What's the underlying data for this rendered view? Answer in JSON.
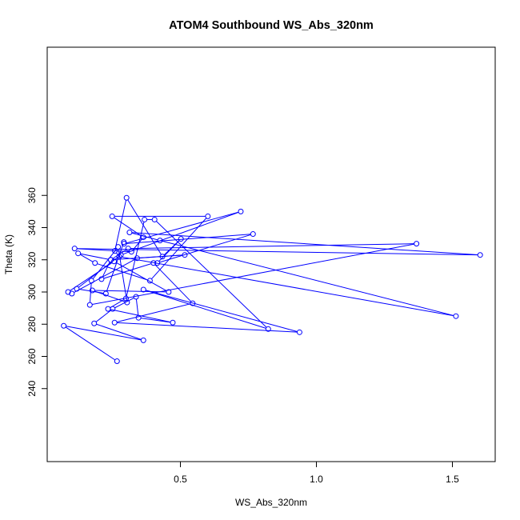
{
  "chart_data": {
    "type": "line",
    "title": "ATOM4 Southbound WS_Abs_320nm",
    "xlabel": "WS_Abs_320nm",
    "ylabel": "Theta (K)",
    "xlim": [
      0.04,
      1.65
    ],
    "ylim": [
      240,
      360
    ],
    "x_ticks": [
      "0.5",
      "1.0",
      "1.5"
    ],
    "y_ticks": [
      "240",
      "260",
      "280",
      "300",
      "320",
      "340",
      "360"
    ],
    "x_tick_values": [
      0.5,
      1.0,
      1.5
    ],
    "y_tick_values": [
      240,
      260,
      280,
      300,
      320,
      340,
      360
    ],
    "grid": false,
    "series": [
      {
        "color": "#0000ff",
        "marker": "open-circle",
        "x": [
          0.267,
          0.071,
          0.364,
          0.183,
          0.251,
          0.337,
          0.346,
          0.472,
          0.234,
          0.3,
          0.368,
          0.405,
          0.823,
          0.364,
          0.938,
          0.258,
          0.545,
          0.401,
          0.21,
          0.244,
          0.308,
          1.368,
          0.167,
          0.173,
          0.271,
          0.304,
          0.176,
          0.457,
          0.256,
          0.087,
          0.101,
          0.341,
          0.516,
          0.244,
          0.124,
          0.186,
          0.388,
          0.601,
          0.249,
          0.364,
          0.32,
          0.111,
          1.602,
          0.313,
          0.425,
          1.513,
          0.275,
          0.259,
          0.302,
          0.434,
          0.502,
          0.415,
          0.767,
          0.293,
          0.722,
          0.281,
          0.119,
          0.226,
          0.292
        ],
        "y": [
          257.0,
          279.0,
          270.0,
          280.5,
          289.5,
          297.0,
          284.0,
          281.0,
          289.5,
          296.0,
          345.0,
          345.0,
          277.0,
          301.5,
          275.0,
          281.0,
          293.0,
          318.0,
          308.0,
          320.0,
          327.0,
          330.0,
          292.0,
          307.0,
          328.0,
          293.5,
          301.0,
          300.0,
          319.0,
          300.0,
          299.0,
          321.0,
          323.0,
          320.0,
          324.0,
          318.0,
          307.0,
          347.0,
          347.0,
          334.0,
          325.0,
          327.0,
          323.0,
          337.0,
          332.0,
          285.0,
          322.0,
          325.5,
          358.5,
          322.0,
          333.0,
          318.0,
          336.0,
          330.0,
          350.0,
          323.0,
          302.0,
          299.0,
          331.0
        ]
      }
    ]
  }
}
